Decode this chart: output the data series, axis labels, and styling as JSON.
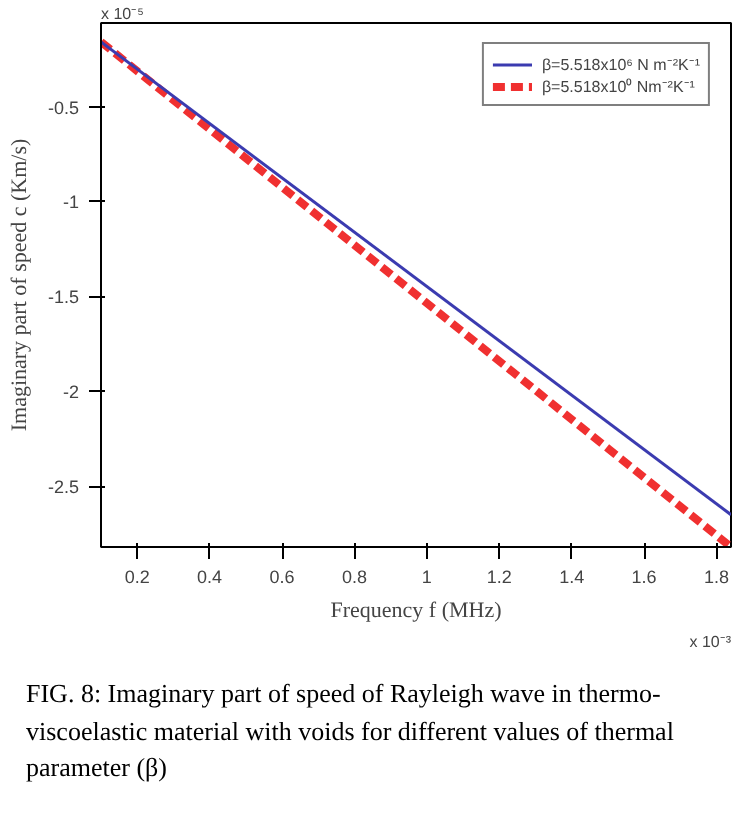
{
  "chart_data": {
    "type": "line",
    "xlabel": "Frequency f (MHz)",
    "ylabel": "Imaginary part of speed c (Km/s)",
    "x": [
      0.1,
      1.84
    ],
    "series": [
      {
        "name": "β=5.518x10⁶ N m⁻²K⁻¹",
        "color": "#3b3bb0",
        "values": [
          -0.16,
          -2.65
        ],
        "line_style": "solid"
      },
      {
        "name": "β=5.518x10⁰ Nm⁻²K⁻¹",
        "color": "#f03030",
        "values": [
          -0.16,
          -2.82
        ],
        "line_style": "dashed"
      }
    ],
    "xlim": [
      0.1,
      1.84
    ],
    "ylim": [
      -2.82,
      -0.06
    ],
    "xticks": [
      0.2,
      0.4,
      0.6,
      0.8,
      1,
      1.2,
      1.4,
      1.6,
      1.8
    ],
    "yticks": [
      -2.5,
      -2,
      -1.5,
      -1,
      -0.5
    ],
    "grid": false,
    "legend": "top right",
    "marker": "none",
    "annotations": [
      "x 10⁻³",
      "x 10⁻⁵",
      "FIG. 8: Imaginary part of speed of Rayleigh wave in thermo-viscoelastic material with voids for different values of thermal parameter (β)"
    ]
  }
}
